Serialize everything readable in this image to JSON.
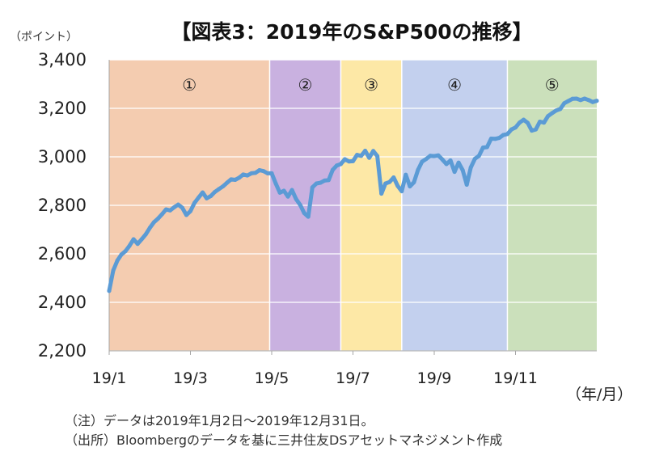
{
  "title": "【図表3：2019年のS&P500の推移】",
  "y_unit": "（ポイント）",
  "x_unit": "（年/月）",
  "notes": {
    "note1": "（注）データは2019年1月2日～2019年12月31日。",
    "note2": "（出所）Bloombergのデータを基に三井住友DSアセットマネジメント作成"
  },
  "colors": {
    "line": "#5b9bd5",
    "period_fills": [
      "#f4ccb0",
      "#c9b1e0",
      "#fde8a6",
      "#c3d0ee",
      "#cbe0bb"
    ]
  },
  "chart_data": {
    "type": "line",
    "title": "【図表3：2019年のS&P500の推移】",
    "xlabel": "（年/月）",
    "ylabel": "（ポイント）",
    "ylim": [
      2200,
      3400
    ],
    "yticks": [
      2200,
      2400,
      2600,
      2800,
      3000,
      3200,
      3400
    ],
    "ytick_labels": [
      "2,200",
      "2,400",
      "2,600",
      "2,800",
      "3,000",
      "3,200",
      "3,400"
    ],
    "xlim": [
      1,
      13
    ],
    "xticks": [
      {
        "x": 1,
        "label": "19/1"
      },
      {
        "x": 3,
        "label": "19/3"
      },
      {
        "x": 5,
        "label": "19/5"
      },
      {
        "x": 7,
        "label": "19/7"
      },
      {
        "x": 9,
        "label": "19/9"
      },
      {
        "x": 11,
        "label": "19/11"
      }
    ],
    "periods": [
      {
        "label": "①",
        "start": 1.0,
        "end": 4.95
      },
      {
        "label": "②",
        "start": 4.95,
        "end": 6.7
      },
      {
        "label": "③",
        "start": 6.7,
        "end": 8.2
      },
      {
        "label": "④",
        "start": 8.2,
        "end": 10.8
      },
      {
        "label": "⑤",
        "start": 10.8,
        "end": 13.0
      }
    ],
    "grid": true,
    "series": [
      {
        "x": [
          1.0,
          1.1,
          1.2,
          1.3,
          1.4,
          1.5,
          1.6,
          1.7,
          1.8,
          1.9,
          2.0,
          2.1,
          2.2,
          2.3,
          2.4,
          2.5,
          2.6,
          2.7,
          2.8,
          2.9,
          3.0,
          3.1,
          3.2,
          3.3,
          3.4,
          3.5,
          3.6,
          3.7,
          3.8,
          3.9,
          4.0,
          4.1,
          4.2,
          4.3,
          4.4,
          4.5,
          4.6,
          4.7,
          4.8,
          4.9,
          5.0,
          5.1,
          5.2,
          5.3,
          5.4,
          5.5,
          5.6,
          5.7,
          5.8,
          5.9,
          6.0,
          6.1,
          6.2,
          6.3,
          6.4,
          6.5,
          6.6,
          6.7,
          6.8,
          6.9,
          7.0,
          7.1,
          7.2,
          7.3,
          7.4,
          7.5,
          7.6,
          7.7,
          7.8,
          7.9,
          8.0,
          8.1,
          8.2,
          8.3,
          8.4,
          8.5,
          8.6,
          8.7,
          8.8,
          8.9,
          9.0,
          9.1,
          9.2,
          9.3,
          9.4,
          9.5,
          9.6,
          9.7,
          9.8,
          9.9,
          10.0,
          10.1,
          10.2,
          10.3,
          10.4,
          10.5,
          10.6,
          10.7,
          10.8,
          10.9,
          11.0,
          11.1,
          11.2,
          11.3,
          11.4,
          11.5,
          11.6,
          11.7,
          11.8,
          11.9,
          12.0,
          12.1,
          12.2,
          12.3,
          12.4,
          12.5,
          12.6,
          12.7,
          12.8,
          12.9,
          13.0
        ],
        "values": [
          2447,
          2531,
          2572,
          2597,
          2611,
          2633,
          2660,
          2641,
          2660,
          2680,
          2707,
          2730,
          2745,
          2763,
          2783,
          2779,
          2792,
          2803,
          2790,
          2760,
          2776,
          2810,
          2832,
          2853,
          2829,
          2838,
          2855,
          2867,
          2878,
          2893,
          2907,
          2905,
          2914,
          2927,
          2923,
          2932,
          2934,
          2945,
          2941,
          2932,
          2932,
          2890,
          2852,
          2860,
          2836,
          2863,
          2826,
          2802,
          2768,
          2753,
          2874,
          2890,
          2893,
          2902,
          2904,
          2946,
          2964,
          2970,
          2990,
          2981,
          2982,
          3008,
          3004,
          3025,
          2996,
          3024,
          3003,
          2848,
          2890,
          2896,
          2915,
          2880,
          2858,
          2926,
          2878,
          2895,
          2946,
          2980,
          2991,
          3004,
          3003,
          3006,
          2989,
          2970,
          2985,
          2938,
          2976,
          2945,
          2885,
          2956,
          2992,
          3004,
          3038,
          3040,
          3075,
          3074,
          3078,
          3090,
          3094,
          3113,
          3121,
          3141,
          3153,
          3140,
          3108,
          3113,
          3145,
          3141,
          3168,
          3180,
          3191,
          3197,
          3221,
          3230,
          3239,
          3240,
          3234,
          3240,
          3234,
          3226,
          3231
        ]
      }
    ]
  }
}
